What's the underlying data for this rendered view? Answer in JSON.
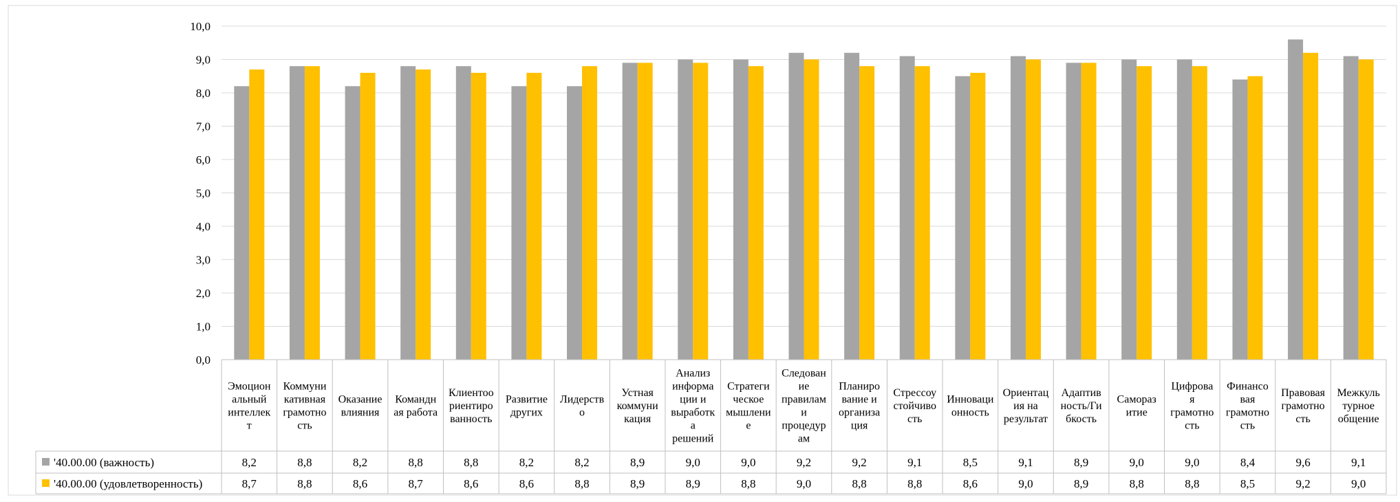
{
  "chart_data": {
    "type": "bar",
    "categories": [
      "Эмоциональный интеллект",
      "Коммуникативная грамотность",
      "Оказание влияния",
      "Командная работа",
      "Клиентоориентированность",
      "Развитие других",
      "Лидерство",
      "Устная коммуникация",
      "Анализ информации и выработка решений",
      "Стратегическое мышление",
      "Следование правилам и процедурам",
      "Планирование и организация",
      "Стрессоустойчивость",
      "Инновационность",
      "Ориентация на результат",
      "Адаптивность/Гибкость",
      "Саморазвитие",
      "Цифровая грамотность",
      "Финансовая грамотность",
      "Правовая грамотность",
      "Межкультурное общение"
    ],
    "category_label_lines": [
      [
        "Эмоцион",
        "альный",
        "интеллек",
        "т"
      ],
      [
        "Коммуни",
        "кативная",
        "грамотно",
        "сть"
      ],
      [
        "Оказание",
        "влияния"
      ],
      [
        "Командн",
        "ая работа"
      ],
      [
        "Клиентоо",
        "риентиро",
        "ванность"
      ],
      [
        "Развитие",
        "других"
      ],
      [
        "Лидерств",
        "о"
      ],
      [
        "Устная",
        "коммуни",
        "кация"
      ],
      [
        "Анализ",
        "информа",
        "ции и",
        "выработк",
        "а",
        "решений"
      ],
      [
        "Стратеги",
        "ческое",
        "мышлени",
        "е"
      ],
      [
        "Следован",
        "ие",
        "правилам",
        "и",
        "процедур",
        "ам"
      ],
      [
        "Планиро",
        "вание и",
        "организа",
        "ция"
      ],
      [
        "Стрессоу",
        "стойчиво",
        "сть"
      ],
      [
        "Инноваци",
        "онность"
      ],
      [
        "Ориентац",
        "ия на",
        "результат"
      ],
      [
        "Адаптив",
        "ность/Ги",
        "бкость"
      ],
      [
        "Самораз",
        "итие"
      ],
      [
        "Цифрова",
        "я",
        "грамотно",
        "сть"
      ],
      [
        "Финансо",
        "вая",
        "грамотно",
        "сть"
      ],
      [
        "Правовая",
        "грамотно",
        "сть"
      ],
      [
        "Межкуль",
        "турное",
        "общение"
      ]
    ],
    "series": [
      {
        "name": "'40.00.00 (важность)",
        "color": "#a5a5a5",
        "values": [
          8.2,
          8.8,
          8.2,
          8.8,
          8.8,
          8.2,
          8.2,
          8.9,
          9.0,
          9.0,
          9.2,
          9.2,
          9.1,
          8.5,
          9.1,
          8.9,
          9.0,
          9.0,
          8.4,
          9.6,
          9.1
        ],
        "labels": [
          "8,2",
          "8,8",
          "8,2",
          "8,8",
          "8,8",
          "8,2",
          "8,2",
          "8,9",
          "9,0",
          "9,0",
          "9,2",
          "9,2",
          "9,1",
          "8,5",
          "9,1",
          "8,9",
          "9,0",
          "9,0",
          "8,4",
          "9,6",
          "9,1"
        ]
      },
      {
        "name": "'40.00.00 (удовлетворенность)",
        "color": "#ffc000",
        "values": [
          8.7,
          8.8,
          8.6,
          8.7,
          8.6,
          8.6,
          8.8,
          8.9,
          8.9,
          8.8,
          9.0,
          8.8,
          8.8,
          8.6,
          9.0,
          8.9,
          8.8,
          8.8,
          8.5,
          9.2,
          9.0
        ],
        "labels": [
          "8,7",
          "8,8",
          "8,6",
          "8,7",
          "8,6",
          "8,6",
          "8,8",
          "8,9",
          "8,9",
          "8,8",
          "9,0",
          "8,8",
          "8,8",
          "8,6",
          "9,0",
          "8,9",
          "8,8",
          "8,8",
          "8,5",
          "9,2",
          "9,0"
        ]
      }
    ],
    "ylim": [
      0,
      10
    ],
    "y_ticks": [
      "0,0",
      "1,0",
      "2,0",
      "3,0",
      "4,0",
      "5,0",
      "6,0",
      "7,0",
      "8,0",
      "9,0",
      "10,0"
    ],
    "grid": true,
    "legend": "data-table",
    "title": "",
    "xlabel": "",
    "ylabel": ""
  }
}
